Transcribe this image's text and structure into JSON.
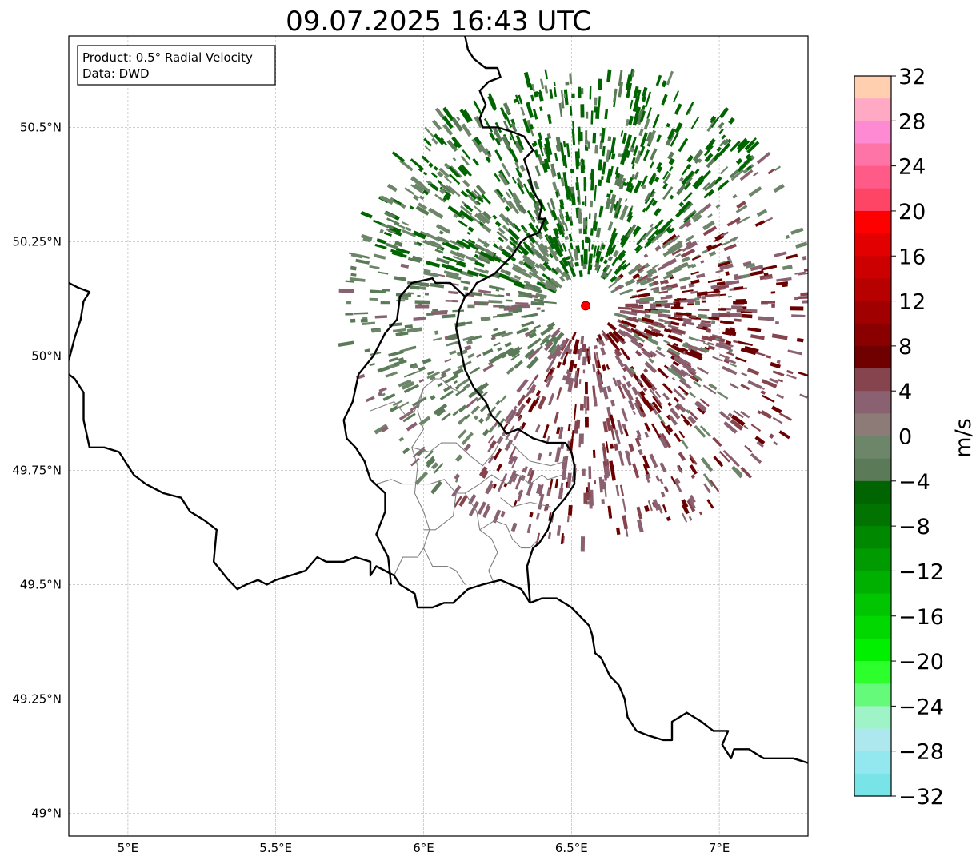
{
  "title": "09.07.2025 16:43 UTC",
  "info_box": {
    "line1": "Product: 0.5° Radial Velocity",
    "line2": "Data: DWD"
  },
  "map": {
    "lon_range": [
      4.8,
      7.3
    ],
    "lat_range": [
      48.95,
      50.7
    ],
    "lon_ticks": [
      {
        "value": 5.0,
        "label": "5°E"
      },
      {
        "value": 5.5,
        "label": "5.5°E"
      },
      {
        "value": 6.0,
        "label": "6°E"
      },
      {
        "value": 6.5,
        "label": "6.5°E"
      },
      {
        "value": 7.0,
        "label": "7°E"
      }
    ],
    "lat_ticks": [
      {
        "value": 49.0,
        "label": "49°N"
      },
      {
        "value": 49.25,
        "label": "49.25°N"
      },
      {
        "value": 49.5,
        "label": "49.5°N"
      },
      {
        "value": 49.75,
        "label": "49.75°N"
      },
      {
        "value": 50.0,
        "label": "50°N"
      },
      {
        "value": 50.25,
        "label": "50.25°N"
      },
      {
        "value": 50.5,
        "label": "50.5°N"
      }
    ],
    "gridlines": true,
    "radar_site": {
      "lon": 6.548,
      "lat": 50.11,
      "color": "#ff0000"
    },
    "country_borders": [
      [
        [
          6.14,
          50.7
        ],
        [
          6.15,
          50.67
        ],
        [
          6.17,
          50.65
        ],
        [
          6.19,
          50.64
        ],
        [
          6.21,
          50.63
        ],
        [
          6.25,
          50.63
        ],
        [
          6.26,
          50.61
        ],
        [
          6.22,
          50.6
        ],
        [
          6.19,
          50.58
        ],
        [
          6.21,
          50.55
        ],
        [
          6.19,
          50.52
        ],
        [
          6.2,
          50.5
        ],
        [
          6.25,
          50.5
        ],
        [
          6.3,
          50.49
        ],
        [
          6.34,
          50.48
        ],
        [
          6.37,
          50.45
        ],
        [
          6.34,
          50.43
        ],
        [
          6.36,
          50.39
        ],
        [
          6.37,
          50.36
        ],
        [
          6.4,
          50.33
        ],
        [
          6.39,
          50.3
        ],
        [
          6.41,
          50.3
        ],
        [
          6.39,
          50.27
        ],
        [
          6.35,
          50.26
        ],
        [
          6.33,
          50.25
        ],
        [
          6.3,
          50.22
        ],
        [
          6.27,
          50.2
        ],
        [
          6.24,
          50.18
        ],
        [
          6.18,
          50.16
        ],
        [
          6.16,
          50.14
        ],
        [
          6.14,
          50.13
        ],
        [
          6.12,
          50.1
        ],
        [
          6.11,
          50.06
        ],
        [
          6.12,
          50.03
        ],
        [
          6.13,
          50.0
        ],
        [
          6.14,
          49.97
        ],
        [
          6.17,
          49.93
        ],
        [
          6.21,
          49.9
        ],
        [
          6.23,
          49.87
        ],
        [
          6.26,
          49.85
        ],
        [
          6.28,
          49.83
        ],
        [
          6.32,
          49.84
        ],
        [
          6.37,
          49.82
        ],
        [
          6.42,
          49.81
        ],
        [
          6.48,
          49.81
        ],
        [
          6.5,
          49.79
        ],
        [
          6.51,
          49.76
        ],
        [
          6.51,
          49.72
        ],
        [
          6.48,
          49.69
        ],
        [
          6.44,
          49.66
        ],
        [
          6.42,
          49.62
        ],
        [
          6.39,
          49.59
        ],
        [
          6.37,
          49.58
        ],
        [
          6.35,
          49.54
        ],
        [
          6.36,
          49.46
        ]
      ],
      [
        [
          6.36,
          49.46
        ],
        [
          6.33,
          49.49
        ],
        [
          6.26,
          49.51
        ],
        [
          6.2,
          49.5
        ],
        [
          6.15,
          49.49
        ],
        [
          6.1,
          49.46
        ],
        [
          6.07,
          49.46
        ],
        [
          6.03,
          49.45
        ],
        [
          5.98,
          49.45
        ],
        [
          5.97,
          49.48
        ],
        [
          5.92,
          49.5
        ],
        [
          5.9,
          49.52
        ],
        [
          5.84,
          49.54
        ],
        [
          5.82,
          49.52
        ],
        [
          5.82,
          49.55
        ],
        [
          5.77,
          49.56
        ],
        [
          5.73,
          49.55
        ],
        [
          5.67,
          49.55
        ],
        [
          5.64,
          49.56
        ],
        [
          5.6,
          49.53
        ],
        [
          5.55,
          49.52
        ],
        [
          5.5,
          49.51
        ],
        [
          5.47,
          49.5
        ],
        [
          5.44,
          49.51
        ],
        [
          5.4,
          49.5
        ],
        [
          5.37,
          49.49
        ],
        [
          5.34,
          49.51
        ],
        [
          5.29,
          49.55
        ],
        [
          5.3,
          49.62
        ],
        [
          5.26,
          49.64
        ],
        [
          5.21,
          49.66
        ],
        [
          5.18,
          49.69
        ],
        [
          5.12,
          49.7
        ],
        [
          5.06,
          49.72
        ],
        [
          5.02,
          49.74
        ],
        [
          4.97,
          49.79
        ],
        [
          4.92,
          49.8
        ],
        [
          4.87,
          49.8
        ],
        [
          4.85,
          49.86
        ],
        [
          4.85,
          49.92
        ],
        [
          4.82,
          49.95
        ],
        [
          4.8,
          49.96
        ]
      ],
      [
        [
          4.8,
          49.99
        ],
        [
          4.82,
          50.04
        ],
        [
          4.84,
          50.08
        ],
        [
          4.85,
          50.12
        ],
        [
          4.87,
          50.14
        ],
        [
          4.83,
          50.15
        ],
        [
          4.8,
          50.16
        ]
      ],
      [
        [
          6.36,
          49.46
        ],
        [
          6.4,
          49.47
        ],
        [
          6.45,
          49.47
        ],
        [
          6.5,
          49.45
        ],
        [
          6.53,
          49.43
        ],
        [
          6.56,
          49.41
        ],
        [
          6.57,
          49.39
        ],
        [
          6.58,
          49.35
        ],
        [
          6.6,
          49.34
        ],
        [
          6.63,
          49.3
        ],
        [
          6.66,
          49.28
        ],
        [
          6.68,
          49.25
        ],
        [
          6.69,
          49.21
        ],
        [
          6.72,
          49.18
        ],
        [
          6.76,
          49.17
        ],
        [
          6.81,
          49.16
        ],
        [
          6.84,
          49.16
        ],
        [
          6.84,
          49.2
        ],
        [
          6.89,
          49.22
        ],
        [
          6.94,
          49.2
        ],
        [
          6.98,
          49.18
        ],
        [
          7.03,
          49.18
        ],
        [
          7.01,
          49.15
        ],
        [
          7.04,
          49.12
        ],
        [
          7.05,
          49.14
        ],
        [
          7.1,
          49.14
        ],
        [
          7.15,
          49.12
        ],
        [
          7.2,
          49.12
        ],
        [
          7.25,
          49.12
        ],
        [
          7.3,
          49.11
        ]
      ],
      [
        [
          5.89,
          49.5
        ],
        [
          5.88,
          49.56
        ],
        [
          5.84,
          49.61
        ],
        [
          5.87,
          49.66
        ],
        [
          5.87,
          49.7
        ],
        [
          5.82,
          49.73
        ],
        [
          5.8,
          49.77
        ],
        [
          5.77,
          49.8
        ],
        [
          5.74,
          49.82
        ],
        [
          5.73,
          49.86
        ],
        [
          5.76,
          49.9
        ],
        [
          5.78,
          49.96
        ],
        [
          5.83,
          50.0
        ],
        [
          5.87,
          50.05
        ],
        [
          5.91,
          50.08
        ],
        [
          5.92,
          50.13
        ],
        [
          5.96,
          50.16
        ],
        [
          6.03,
          50.17
        ],
        [
          6.04,
          50.16
        ],
        [
          6.09,
          50.16
        ],
        [
          6.14,
          50.13
        ]
      ]
    ],
    "admin_lines": [
      [
        [
          5.82,
          49.88
        ],
        [
          5.9,
          49.9
        ],
        [
          5.94,
          49.87
        ],
        [
          5.97,
          49.88
        ],
        [
          6.0,
          49.93
        ],
        [
          6.04,
          49.95
        ],
        [
          6.06,
          49.95
        ],
        [
          6.09,
          49.93
        ],
        [
          6.13,
          49.92
        ]
      ],
      [
        [
          6.0,
          49.93
        ],
        [
          5.98,
          49.88
        ],
        [
          6.0,
          49.84
        ],
        [
          5.96,
          49.8
        ],
        [
          5.98,
          49.76
        ],
        [
          5.97,
          49.7
        ],
        [
          6.0,
          49.66
        ],
        [
          6.02,
          49.62
        ],
        [
          6.0,
          49.58
        ],
        [
          6.03,
          49.54
        ],
        [
          6.08,
          49.54
        ],
        [
          6.11,
          49.53
        ],
        [
          6.14,
          49.5
        ]
      ],
      [
        [
          5.96,
          49.8
        ],
        [
          6.02,
          49.79
        ],
        [
          6.06,
          49.81
        ],
        [
          6.11,
          49.81
        ],
        [
          6.16,
          49.78
        ],
        [
          6.2,
          49.76
        ],
        [
          6.24,
          49.79
        ],
        [
          6.27,
          49.83
        ]
      ],
      [
        [
          5.84,
          49.72
        ],
        [
          5.89,
          49.73
        ],
        [
          5.93,
          49.72
        ],
        [
          5.97,
          49.72
        ],
        [
          6.02,
          49.72
        ],
        [
          6.07,
          49.73
        ],
        [
          6.11,
          49.7
        ],
        [
          6.14,
          49.7
        ],
        [
          6.19,
          49.72
        ],
        [
          6.23,
          49.74
        ],
        [
          6.28,
          49.72
        ],
        [
          6.32,
          49.74
        ],
        [
          6.36,
          49.72
        ],
        [
          6.4,
          49.74
        ],
        [
          6.42,
          49.73
        ],
        [
          6.47,
          49.74
        ],
        [
          6.49,
          49.73
        ]
      ],
      [
        [
          6.11,
          49.7
        ],
        [
          6.1,
          49.65
        ],
        [
          6.04,
          49.62
        ],
        [
          6.0,
          49.62
        ]
      ],
      [
        [
          6.14,
          49.7
        ],
        [
          6.18,
          49.66
        ],
        [
          6.19,
          49.62
        ],
        [
          6.23,
          49.6
        ],
        [
          6.25,
          49.57
        ],
        [
          6.22,
          49.53
        ],
        [
          6.24,
          49.5
        ]
      ],
      [
        [
          5.9,
          49.52
        ],
        [
          5.93,
          49.56
        ],
        [
          5.98,
          49.56
        ],
        [
          6.0,
          49.58
        ]
      ],
      [
        [
          6.19,
          49.62
        ],
        [
          6.24,
          49.64
        ],
        [
          6.28,
          49.63
        ],
        [
          6.3,
          49.6
        ],
        [
          6.33,
          49.58
        ],
        [
          6.36,
          49.58
        ],
        [
          6.39,
          49.6
        ]
      ],
      [
        [
          6.27,
          49.83
        ],
        [
          6.31,
          49.8
        ],
        [
          6.36,
          49.77
        ],
        [
          6.43,
          49.76
        ],
        [
          6.48,
          49.77
        ]
      ],
      [
        [
          6.26,
          49.69
        ],
        [
          6.3,
          49.67
        ],
        [
          6.36,
          49.68
        ],
        [
          6.43,
          49.67
        ]
      ]
    ]
  },
  "colorbar": {
    "label": "m/s",
    "vmin": -32,
    "vmax": 32,
    "ticks": [
      32,
      28,
      24,
      20,
      16,
      12,
      8,
      4,
      0,
      -4,
      -8,
      -12,
      -16,
      -20,
      -24,
      -28,
      -32
    ],
    "tick_labels": [
      "32",
      "28",
      "24",
      "20",
      "16",
      "12",
      "8",
      "4",
      "0",
      "−4",
      "−8",
      "−12",
      "−16",
      "−20",
      "−24",
      "−28",
      "−32"
    ],
    "colors_top_to_bottom": [
      "#ffcfb0",
      "#ffa9c4",
      "#ff8ad4",
      "#ff74a7",
      "#ff5a88",
      "#ff4566",
      "#ff0000",
      "#e20000",
      "#cc0000",
      "#b70000",
      "#a00000",
      "#8a0000",
      "#700000",
      "#86444e",
      "#8a6170",
      "#8c7b76",
      "#6d8669",
      "#5a7a58",
      "#006400",
      "#007300",
      "#008800",
      "#009b00",
      "#00b000",
      "#00c500",
      "#00d800",
      "#00f000",
      "#2cff2c",
      "#66fa7a",
      "#9ef4c6",
      "#ade8ee",
      "#92e8ee",
      "#78e4e8"
    ]
  },
  "echo_colors": {
    "outbound_strong": "#6a0000",
    "outbound": "#86444e",
    "outbound_weak": "#8a6170",
    "zero": "#8c7b76",
    "inbound_weak": "#6d8669",
    "inbound": "#5a7a58",
    "inbound_strong": "#006400"
  }
}
